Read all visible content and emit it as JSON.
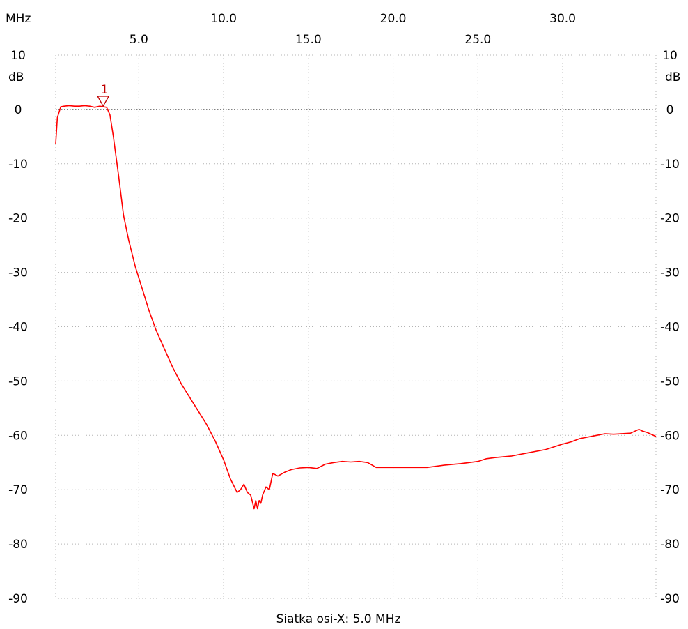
{
  "chart_data": {
    "type": "line",
    "xunit": "MHz",
    "yunit": "dB",
    "xlabel": "Siatka osi-X: 5.0 MHz",
    "xlim": [
      0.1,
      35.5
    ],
    "ylim": [
      -90,
      10
    ],
    "xticks_top": [
      "10.0",
      "20.0",
      "30.0"
    ],
    "xticks_bottom": [
      "5.0",
      "15.0",
      "25.0"
    ],
    "xtick_top_values": [
      10,
      20,
      30
    ],
    "xtick_bottom_values": [
      5,
      15,
      25
    ],
    "yticks": [
      10,
      0,
      -10,
      -20,
      -30,
      -40,
      -50,
      -60,
      -70,
      -80,
      -90
    ],
    "ytick_labels": [
      "10",
      "0",
      "-10",
      "-20",
      "-30",
      "-40",
      "-50",
      "-60",
      "-70",
      "-80",
      "-90"
    ],
    "grid": true,
    "colors": {
      "trace": "#ff0000",
      "marker": "#c00000",
      "grid": "#b4b4b4"
    },
    "marker": {
      "label": "1",
      "x": 2.9,
      "y": 0.5
    },
    "series": [
      {
        "x": [
          0.1,
          0.2,
          0.4,
          0.6,
          0.9,
          1.2,
          1.5,
          1.8,
          2.1,
          2.4,
          2.7,
          2.9,
          3.1,
          3.3,
          3.5,
          3.8,
          4.1,
          4.4,
          4.8,
          5.2,
          5.6,
          6.0,
          6.5,
          7.0,
          7.5,
          8.0,
          8.5,
          9.0,
          9.5,
          10.0,
          10.4,
          10.8,
          11.0,
          11.2,
          11.4,
          11.6,
          11.8,
          11.9,
          12.0,
          12.1,
          12.2,
          12.3,
          12.5,
          12.7,
          12.9,
          13.2,
          13.6,
          14.0,
          14.5,
          15.0,
          15.5,
          16.0,
          16.5,
          17.0,
          17.5,
          18.0,
          18.5,
          19.0,
          19.5,
          20.0,
          21.0,
          22.0,
          23.0,
          24.0,
          25.0,
          25.5,
          26.0,
          27.0,
          28.0,
          29.0,
          30.0,
          30.5,
          31.0,
          32.0,
          32.5,
          33.0,
          34.0,
          34.5,
          34.7,
          35.0,
          35.5
        ],
        "y": [
          -6.3,
          -1.5,
          0.5,
          0.6,
          0.7,
          0.6,
          0.6,
          0.7,
          0.6,
          0.4,
          0.6,
          0.5,
          0.4,
          -1.0,
          -5.0,
          -12.0,
          -19.5,
          -24.0,
          -29.0,
          -33.0,
          -37.0,
          -40.5,
          -44.0,
          -47.5,
          -50.5,
          -53.0,
          -55.5,
          -58.0,
          -61.0,
          -64.5,
          -68.0,
          -70.5,
          -70.0,
          -69.0,
          -70.5,
          -71.0,
          -73.5,
          -72.0,
          -73.5,
          -72.0,
          -72.5,
          -71.0,
          -69.5,
          -70.0,
          -67.0,
          -67.5,
          -66.8,
          -66.3,
          -66.0,
          -65.9,
          -66.1,
          -65.3,
          -65.0,
          -64.8,
          -64.9,
          -64.8,
          -65.0,
          -65.9,
          -65.9,
          -65.9,
          -65.9,
          -65.9,
          -65.5,
          -65.2,
          -64.8,
          -64.3,
          -64.1,
          -63.8,
          -63.2,
          -62.6,
          -61.6,
          -61.2,
          -60.6,
          -60.0,
          -59.7,
          -59.8,
          -59.6,
          -58.9,
          -59.2,
          -59.5,
          -60.2
        ]
      }
    ]
  }
}
